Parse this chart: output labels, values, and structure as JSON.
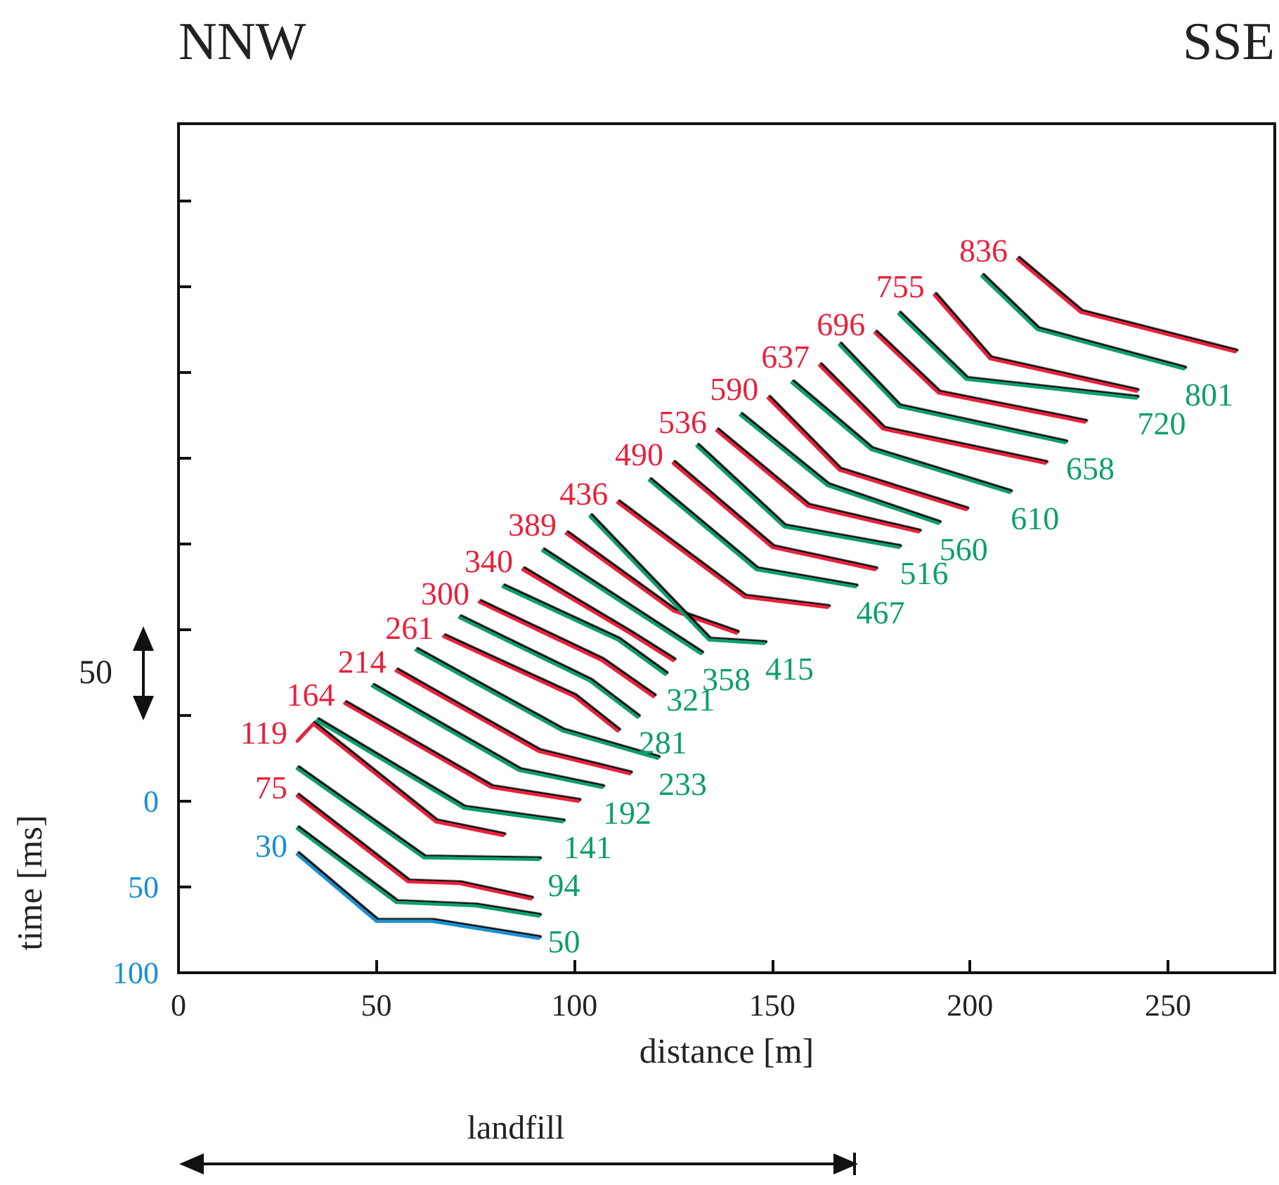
{
  "chart_data": {
    "type": "line",
    "xlabel": "distance [m]",
    "ylabel": "time [ms]",
    "xlim": [
      0,
      277
    ],
    "xticks": [
      0,
      50,
      100,
      150,
      200,
      250
    ],
    "ylim": [
      100,
      -395
    ],
    "yticks": [
      100,
      50,
      0,
      {
        "value": -50,
        "label": null
      },
      {
        "value": -100,
        "label": null
      },
      {
        "value": -150,
        "label": null
      },
      {
        "value": -200,
        "label": null
      },
      {
        "value": -250,
        "label": null
      },
      {
        "value": -300,
        "label": null
      },
      {
        "value": -350,
        "label": null
      }
    ],
    "marker": "none",
    "series": [
      {
        "name": "30",
        "color": "#1a8fd0",
        "x": [
          30,
          50,
          64,
          91
        ],
        "values": [
          31,
          70,
          70,
          80
        ]
      },
      {
        "name": "50",
        "color": "#0d9e6e",
        "x": [
          30,
          55,
          75,
          91
        ],
        "values": [
          16,
          59,
          61,
          67
        ]
      },
      {
        "name": "75",
        "color": "#e8213c",
        "x": [
          30,
          58,
          71,
          89
        ],
        "values": [
          -3,
          47,
          48,
          57
        ]
      },
      {
        "name": "94",
        "color": "#0d9e6e",
        "x": [
          30,
          62,
          91
        ],
        "values": [
          -19,
          33,
          34
        ]
      },
      {
        "name": "119",
        "color": "#e8213c",
        "x": [
          30,
          34,
          65,
          82
        ],
        "values": [
          -35,
          -45,
          12,
          20
        ]
      },
      {
        "name": "141",
        "color": "#0d9e6e",
        "x": [
          35,
          72,
          97
        ],
        "values": [
          -47,
          4,
          12
        ]
      },
      {
        "name": "164",
        "color": "#e8213c",
        "x": [
          42,
          79,
          101
        ],
        "values": [
          -57,
          -8,
          0
        ]
      },
      {
        "name": "192",
        "color": "#0d9e6e",
        "x": [
          49,
          86,
          107
        ],
        "values": [
          -67,
          -18,
          -8
        ]
      },
      {
        "name": "214",
        "color": "#e8213c",
        "x": [
          55,
          91,
          114
        ],
        "values": [
          -76,
          -29,
          -16
        ]
      },
      {
        "name": "233",
        "color": "#0d9e6e",
        "x": [
          60,
          97,
          121
        ],
        "values": [
          -88,
          -41,
          -25
        ]
      },
      {
        "name": "261",
        "color": "#e8213c",
        "x": [
          67,
          100,
          111
        ],
        "values": [
          -96,
          -61,
          -41
        ]
      },
      {
        "name": "281",
        "color": "#0d9e6e",
        "x": [
          71,
          104,
          116
        ],
        "values": [
          -107,
          -70,
          -49
        ]
      },
      {
        "name": "300",
        "color": "#e8213c",
        "x": [
          76,
          107,
          120
        ],
        "values": [
          -116,
          -82,
          -61
        ]
      },
      {
        "name": "321",
        "color": "#0d9e6e",
        "x": [
          82,
          111,
          123
        ],
        "values": [
          -125,
          -94,
          -74
        ]
      },
      {
        "name": "340",
        "color": "#e8213c",
        "x": [
          87,
          114,
          125
        ],
        "values": [
          -135,
          -98,
          -82
        ]
      },
      {
        "name": "358",
        "color": "#0d9e6e",
        "x": [
          92,
          118,
          132
        ],
        "values": [
          -146,
          -107,
          -86
        ]
      },
      {
        "name": "389",
        "color": "#e8213c",
        "x": [
          98,
          125,
          141
        ],
        "values": [
          -156,
          -111,
          -98
        ]
      },
      {
        "name": "415",
        "color": "#0d9e6e",
        "x": [
          104,
          134,
          148
        ],
        "values": [
          -166,
          -94,
          -92
        ]
      },
      {
        "name": "436",
        "color": "#e8213c",
        "x": [
          111,
          143,
          164
        ],
        "values": [
          -174,
          -119,
          -113
        ]
      },
      {
        "name": "467",
        "color": "#0d9e6e",
        "x": [
          119,
          146,
          171
        ],
        "values": [
          -187,
          -135,
          -125
        ]
      },
      {
        "name": "490",
        "color": "#e8213c",
        "x": [
          125,
          150,
          176
        ],
        "values": [
          -197,
          -148,
          -135
        ]
      },
      {
        "name": "516",
        "color": "#0d9e6e",
        "x": [
          131,
          153,
          182
        ],
        "values": [
          -207,
          -160,
          -148
        ]
      },
      {
        "name": "536",
        "color": "#e8213c",
        "x": [
          136,
          159,
          187
        ],
        "values": [
          -216,
          -172,
          -157
        ]
      },
      {
        "name": "560",
        "color": "#0d9e6e",
        "x": [
          142,
          164,
          192
        ],
        "values": [
          -225,
          -184,
          -162
        ]
      },
      {
        "name": "590",
        "color": "#e8213c",
        "x": [
          149,
          167,
          199
        ],
        "values": [
          -235,
          -193,
          -170
        ]
      },
      {
        "name": "610",
        "color": "#0d9e6e",
        "x": [
          155,
          175,
          210
        ],
        "values": [
          -244,
          -205,
          -180
        ]
      },
      {
        "name": "637",
        "color": "#e8213c",
        "x": [
          162,
          178,
          219
        ],
        "values": [
          -254,
          -217,
          -197
        ]
      },
      {
        "name": "658",
        "color": "#0d9e6e",
        "x": [
          167,
          182,
          224
        ],
        "values": [
          -266,
          -230,
          -209
        ]
      },
      {
        "name": "696",
        "color": "#e8213c",
        "x": [
          176,
          192,
          229
        ],
        "values": [
          -273,
          -238,
          -221
        ]
      },
      {
        "name": "720",
        "color": "#0d9e6e",
        "x": [
          182,
          199,
          242
        ],
        "values": [
          -284,
          -246,
          -235
        ]
      },
      {
        "name": "755",
        "color": "#e8213c",
        "x": [
          191,
          205,
          242
        ],
        "values": [
          -295,
          -258,
          -239
        ]
      },
      {
        "name": "801",
        "color": "#0d9e6e",
        "x": [
          203,
          217,
          254
        ],
        "values": [
          -306,
          -275,
          -252
        ]
      },
      {
        "name": "836",
        "color": "#e8213c",
        "x": [
          212,
          228,
          267
        ],
        "values": [
          -316,
          -285,
          -262
        ]
      }
    ],
    "annotations": [
      "NNW",
      "SSE",
      "50",
      "landfill"
    ]
  }
}
